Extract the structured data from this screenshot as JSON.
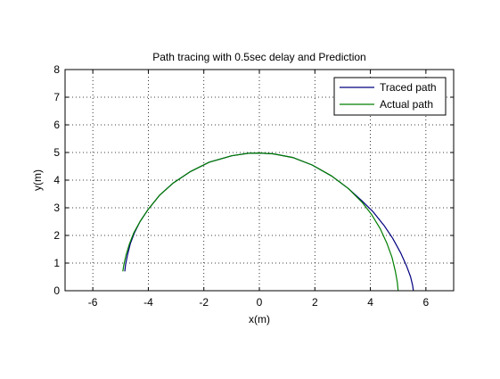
{
  "chart_data": {
    "type": "line",
    "title": "Path tracing with 0.5sec delay and Prediction",
    "xlabel": "x(m)",
    "ylabel": "y(m)",
    "xlim": [
      -7,
      7
    ],
    "ylim": [
      0,
      8
    ],
    "xticks": [
      -6,
      -4,
      -2,
      0,
      2,
      4,
      6
    ],
    "yticks": [
      0,
      1,
      2,
      3,
      4,
      5,
      6,
      7,
      8
    ],
    "grid": true,
    "legend_position": "top-right",
    "series": [
      {
        "name": "Traced path",
        "color": "#00007f",
        "x": [
          -4.85,
          -4.82,
          -4.75,
          -4.65,
          -4.5,
          -4.3,
          -4.0,
          -3.6,
          -3.1,
          -2.5,
          -1.8,
          -1.0,
          -0.4,
          0.0,
          0.5,
          1.2,
          1.9,
          2.6,
          3.2,
          3.7,
          4.1,
          4.5,
          4.8,
          5.1,
          5.3,
          5.45,
          5.52,
          5.55
        ],
        "y": [
          0.7,
          0.95,
          1.3,
          1.7,
          2.1,
          2.5,
          2.95,
          3.45,
          3.9,
          4.3,
          4.65,
          4.88,
          4.97,
          4.98,
          4.95,
          4.82,
          4.55,
          4.15,
          3.7,
          3.25,
          2.85,
          2.35,
          1.9,
          1.35,
          0.9,
          0.5,
          0.2,
          0.0
        ]
      },
      {
        "name": "Actual path",
        "color": "#007f00",
        "x": [
          -4.92,
          -4.88,
          -4.8,
          -4.68,
          -4.52,
          -4.3,
          -4.0,
          -3.6,
          -3.1,
          -2.5,
          -1.8,
          -1.0,
          -0.4,
          0.0,
          0.5,
          1.2,
          1.9,
          2.6,
          3.2,
          3.7,
          4.05,
          4.35,
          4.6,
          4.78,
          4.9,
          4.97,
          5.0
        ],
        "y": [
          0.7,
          0.95,
          1.3,
          1.7,
          2.1,
          2.5,
          2.95,
          3.45,
          3.9,
          4.3,
          4.65,
          4.88,
          4.97,
          4.98,
          4.95,
          4.82,
          4.55,
          4.15,
          3.7,
          3.2,
          2.75,
          2.25,
          1.7,
          1.2,
          0.7,
          0.3,
          0.0
        ]
      }
    ]
  }
}
